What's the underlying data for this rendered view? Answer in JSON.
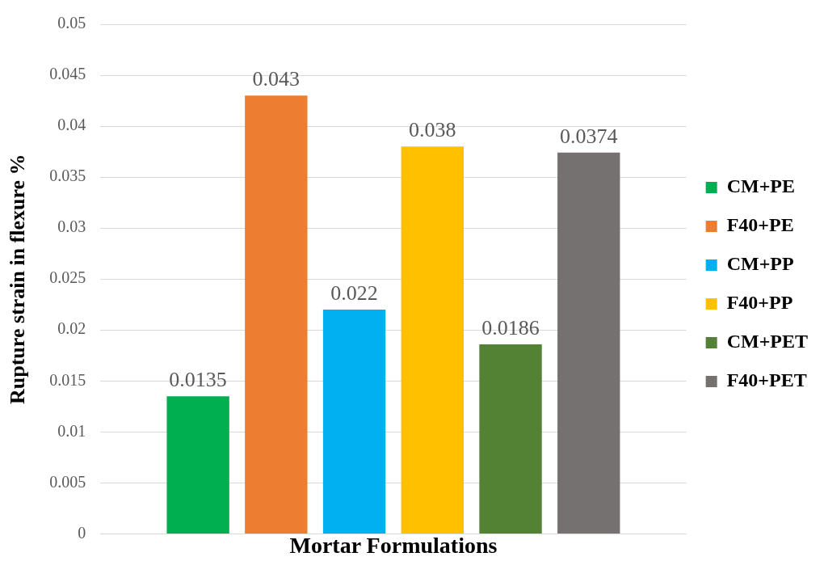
{
  "chart_data": {
    "type": "bar",
    "xlabel": "Mortar Formulations",
    "ylabel": "Rupture strain in flexure %",
    "categories": [
      null
    ],
    "series": [
      {
        "name": "CM+PE",
        "color": "#00b050",
        "values": [
          0.0135
        ]
      },
      {
        "name": "F40+PE",
        "color": "#ed7d31",
        "values": [
          0.043
        ]
      },
      {
        "name": "CM+PP",
        "color": "#00b0f0",
        "values": [
          0.022
        ]
      },
      {
        "name": "F40+PP",
        "color": "#ffc000",
        "values": [
          0.038
        ]
      },
      {
        "name": "CM+PET",
        "color": "#548235",
        "values": [
          0.0186
        ]
      },
      {
        "name": "F40+PET",
        "color": "#767171",
        "values": [
          0.0374
        ]
      }
    ],
    "ylim": [
      0,
      0.05
    ],
    "yticks": [
      0,
      0.005,
      0.01,
      0.015,
      0.02,
      0.025,
      0.03,
      0.035,
      0.04,
      0.045,
      0.05
    ],
    "grid": "y",
    "legend": "right",
    "data_labels": true
  }
}
